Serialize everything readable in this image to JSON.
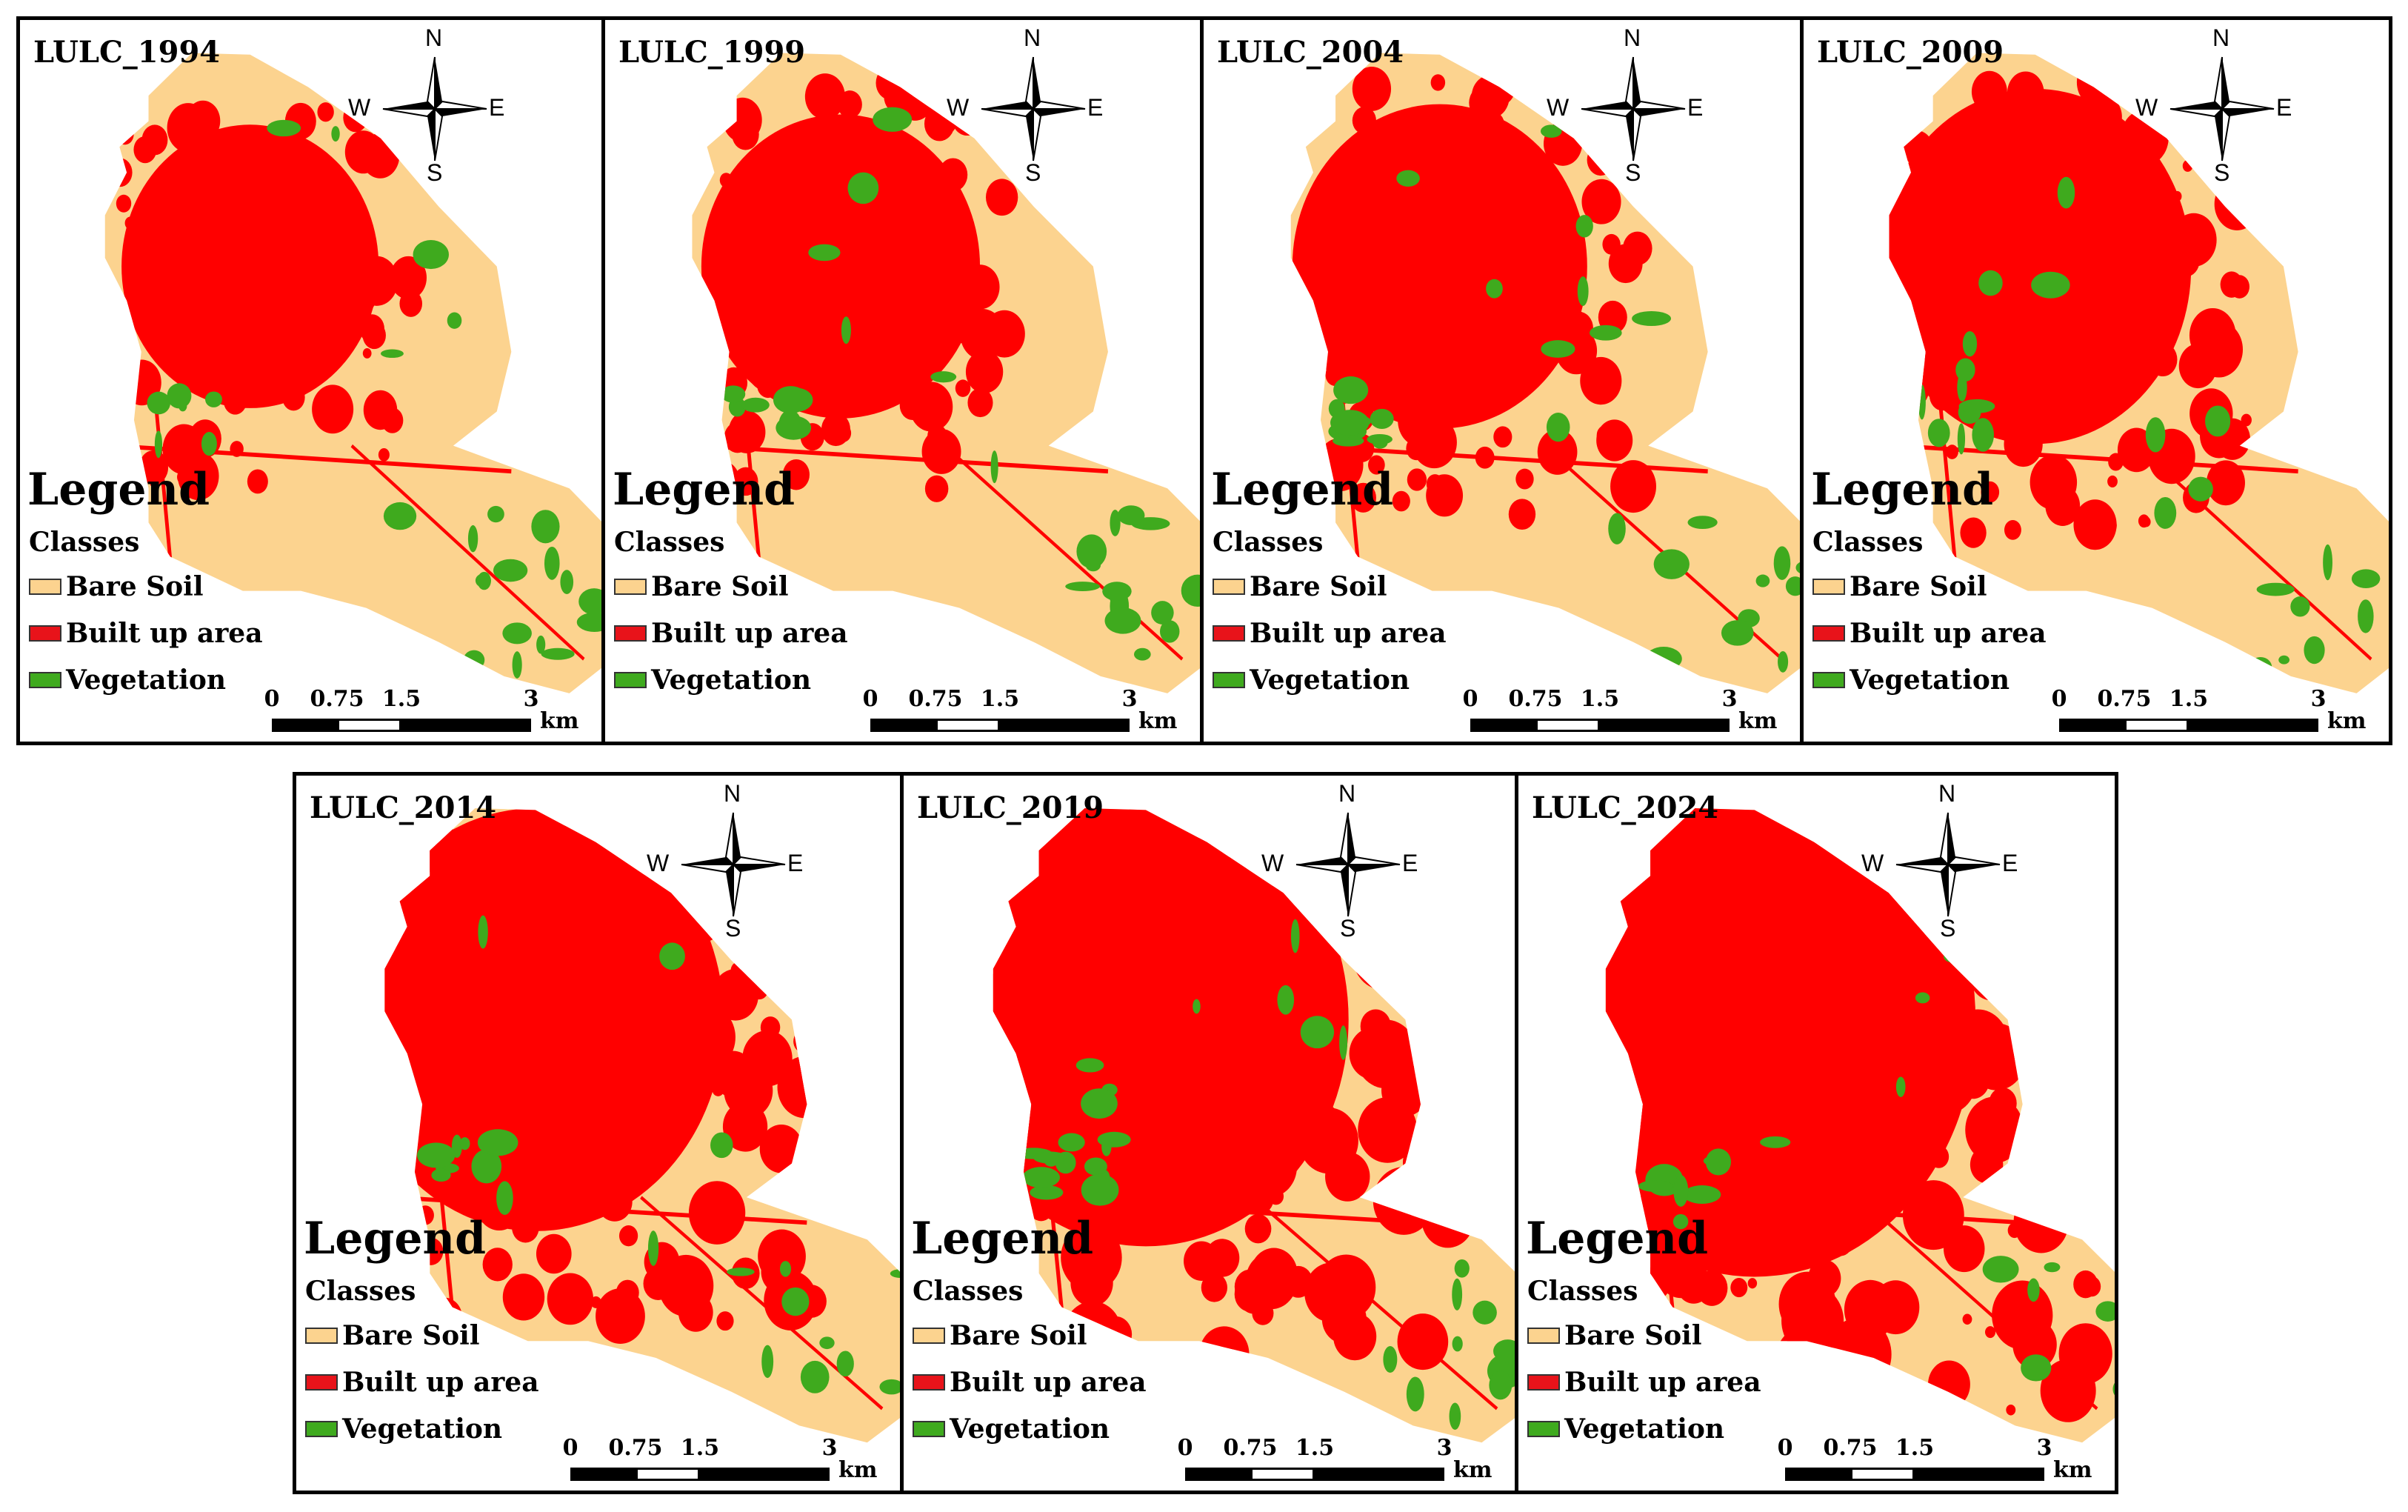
{
  "colors": {
    "bare_soil": "#FCD38F",
    "built_up": "#FF0000",
    "vegetation": "#3FAA1E",
    "border": "#000000"
  },
  "legend": {
    "title": "Legend",
    "subtitle": "Classes",
    "items": [
      {
        "label": "Bare Soil",
        "color": "#FCD38F"
      },
      {
        "label": "Built up area",
        "color": "#E8131A"
      },
      {
        "label": "Vegetation",
        "color": "#3FAA1E"
      }
    ]
  },
  "scale_bar": {
    "ticks": [
      "0",
      "0.75",
      "1.5",
      "3"
    ],
    "unit": "km"
  },
  "compass": {
    "n": "N",
    "s": "S",
    "e": "E",
    "w": "W"
  },
  "panels": [
    {
      "title": "LULC_1994",
      "built_up_level": 0.22,
      "vegetation_level": 0.12
    },
    {
      "title": "LULC_1999",
      "built_up_level": 0.26,
      "vegetation_level": 0.13
    },
    {
      "title": "LULC_2004",
      "built_up_level": 0.3,
      "vegetation_level": 0.15
    },
    {
      "title": "LULC_2009",
      "built_up_level": 0.36,
      "vegetation_level": 0.1
    },
    {
      "title": "LULC_2014",
      "built_up_level": 0.5,
      "vegetation_level": 0.08
    },
    {
      "title": "LULC_2019",
      "built_up_level": 0.56,
      "vegetation_level": 0.14
    },
    {
      "title": "LULC_2024",
      "built_up_level": 0.68,
      "vegetation_level": 0.05
    }
  ]
}
